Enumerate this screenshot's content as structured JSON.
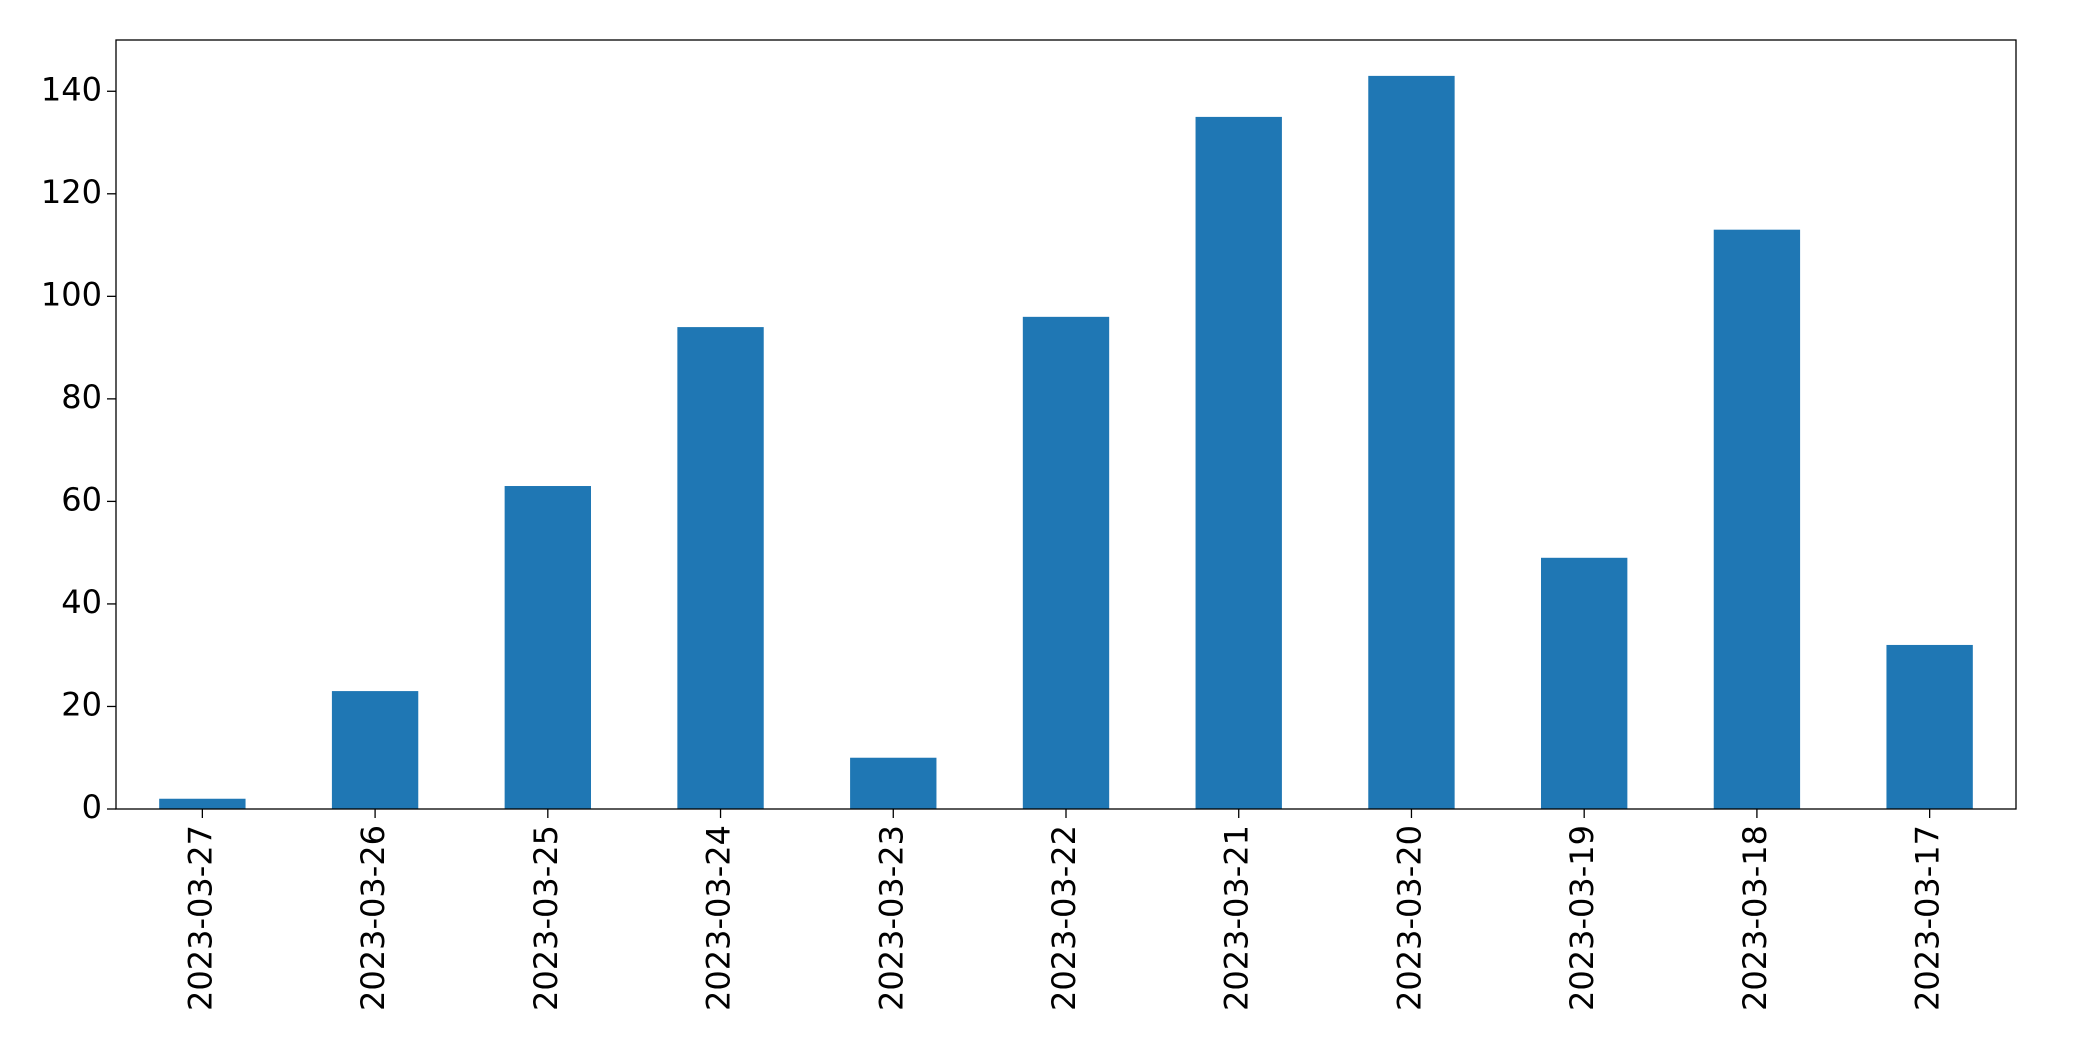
{
  "chart_data": {
    "type": "bar",
    "categories": [
      "2023-03-27",
      "2023-03-26",
      "2023-03-25",
      "2023-03-24",
      "2023-03-23",
      "2023-03-22",
      "2023-03-21",
      "2023-03-20",
      "2023-03-19",
      "2023-03-18",
      "2023-03-17"
    ],
    "values": [
      2,
      23,
      63,
      94,
      10,
      96,
      135,
      143,
      49,
      113,
      32
    ],
    "color": "#1f77b4",
    "ylim": [
      0,
      150
    ],
    "yticks": [
      0,
      20,
      40,
      60,
      80,
      100,
      120,
      140
    ],
    "grid": false
  }
}
